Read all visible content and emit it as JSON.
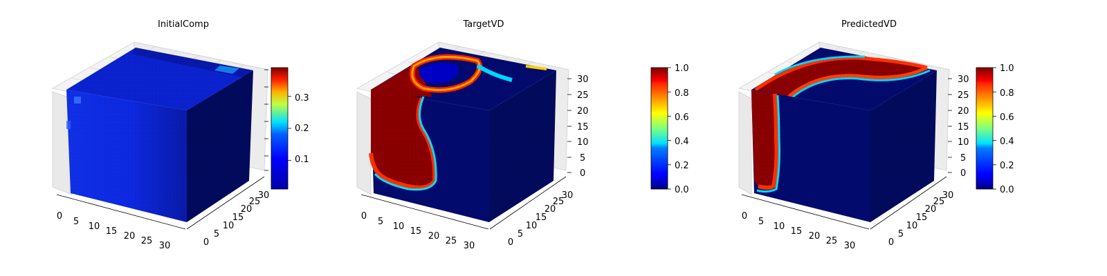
{
  "chart_data": [
    {
      "type": "heatmap",
      "subtype": "3d-voxel-cube",
      "title": "InitialComp",
      "colormap": "jet",
      "grid": true,
      "x_ticks": [
        "0",
        "5",
        "10",
        "15",
        "20",
        "25",
        "30"
      ],
      "y_ticks": [
        "0",
        "5",
        "10",
        "15",
        "20",
        "25",
        "30"
      ],
      "z_ticks": [],
      "xlim": [
        0,
        32
      ],
      "ylim": [
        0,
        32
      ],
      "zlim": [
        0,
        32
      ],
      "colorbar": {
        "ticks": [
          "0.1",
          "0.2",
          "0.3"
        ],
        "tick_values": [
          0.1,
          0.2,
          0.3
        ],
        "range": [
          0.01,
          0.39
        ]
      }
    },
    {
      "type": "heatmap",
      "subtype": "3d-voxel-cube",
      "title": "TargetVD",
      "colormap": "jet",
      "grid": true,
      "x_ticks": [
        "0",
        "5",
        "10",
        "15",
        "20",
        "25",
        "30"
      ],
      "y_ticks": [
        "0",
        "5",
        "10",
        "15",
        "20",
        "25",
        "30"
      ],
      "z_ticks": [
        "0",
        "5",
        "10",
        "15",
        "20",
        "25",
        "30"
      ],
      "xlim": [
        0,
        32
      ],
      "ylim": [
        0,
        32
      ],
      "zlim": [
        0,
        32
      ],
      "colorbar": {
        "ticks": [
          "0.0",
          "0.2",
          "0.4",
          "0.6",
          "0.8",
          "1.0"
        ],
        "tick_values": [
          0,
          0.2,
          0.4,
          0.6,
          0.8,
          1.0
        ],
        "range": [
          0,
          1
        ]
      }
    },
    {
      "type": "heatmap",
      "subtype": "3d-voxel-cube",
      "title": "PredictedVD",
      "colormap": "jet",
      "grid": true,
      "x_ticks": [
        "0",
        "5",
        "10",
        "15",
        "20",
        "25",
        "30"
      ],
      "y_ticks": [
        "0",
        "5",
        "10",
        "15",
        "20",
        "25",
        "30"
      ],
      "z_ticks": [
        "0",
        "5",
        "10",
        "15",
        "20",
        "25",
        "30"
      ],
      "xlim": [
        0,
        32
      ],
      "ylim": [
        0,
        32
      ],
      "zlim": [
        0,
        32
      ],
      "colorbar": {
        "ticks": [
          "0.0",
          "0.2",
          "0.4",
          "0.6",
          "0.8",
          "1.0"
        ],
        "tick_values": [
          0,
          0.2,
          0.4,
          0.6,
          0.8,
          1.0
        ],
        "range": [
          0,
          1
        ]
      }
    }
  ]
}
